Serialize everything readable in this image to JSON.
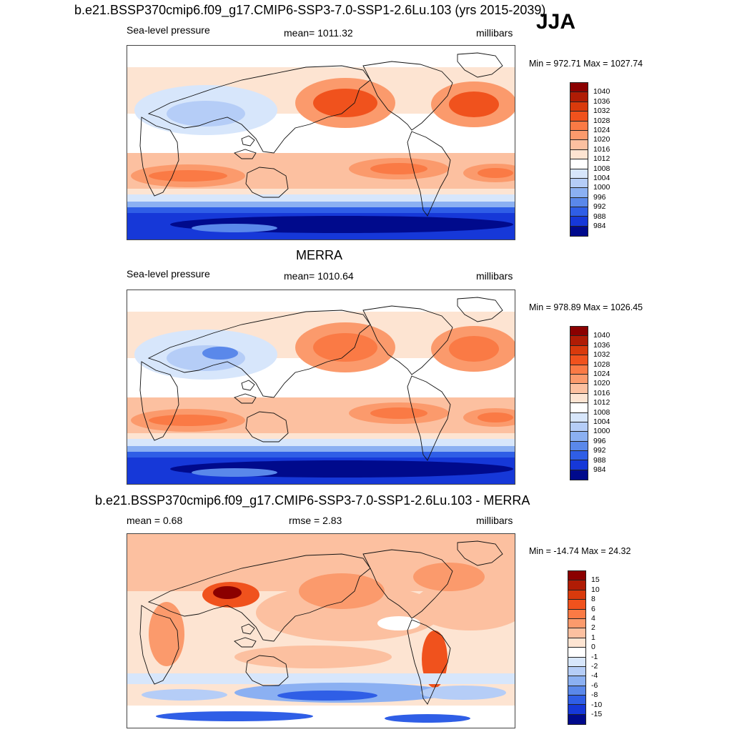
{
  "header": {
    "title": "b.e21.BSSP370cmip6.f09_g17.CMIP6-SSP3-7.0-SSP1-2.6Lu.103 (yrs 2015-2039)",
    "season": "JJA"
  },
  "panels": [
    {
      "id": "model",
      "title": "",
      "left_label": "Sea-level pressure",
      "center_label": "mean= 1011.32",
      "right_label": "millibars",
      "minmax": "Min = 972.71 Max = 1027.74",
      "field": "model"
    },
    {
      "id": "obs",
      "title": "MERRA",
      "left_label": "Sea-level pressure",
      "center_label": "mean= 1010.64",
      "right_label": "millibars",
      "minmax": "Min = 978.89 Max = 1026.45",
      "field": "obs"
    },
    {
      "id": "diff",
      "title": "b.e21.BSSP370cmip6.f09_g17.CMIP6-SSP3-7.0-SSP1-2.6Lu.103 - MERRA",
      "left_label": "mean =   0.68",
      "center_label": "rmse =   2.83",
      "right_label": "millibars",
      "minmax": "Min = -14.74 Max =  24.32",
      "field": "diff"
    }
  ],
  "colorbars": {
    "slp": {
      "levels": [
        "1040",
        "1036",
        "1032",
        "1028",
        "1024",
        "1020",
        "1016",
        "1012",
        "1008",
        "1004",
        "1000",
        "996",
        "992",
        "988",
        "984"
      ],
      "colors": [
        "#8b0000",
        "#b01c05",
        "#d93a0c",
        "#f0521d",
        "#fa7a45",
        "#fb9a6c",
        "#fcc0a0",
        "#fde4d2",
        "#ffffff",
        "#d7e6fb",
        "#b5cdf7",
        "#8bb0f2",
        "#5a88ea",
        "#2f5ee6",
        "#1638d8",
        "#000a8c"
      ]
    },
    "diff": {
      "levels": [
        "15",
        "10",
        "8",
        "6",
        "4",
        "2",
        "1",
        "0",
        "-1",
        "-2",
        "-4",
        "-6",
        "-8",
        "-10",
        "-15"
      ],
      "colors": [
        "#8b0000",
        "#b01c05",
        "#d93a0c",
        "#f0521d",
        "#fa7a45",
        "#fb9a6c",
        "#fcc0a0",
        "#fde4d2",
        "#ffffff",
        "#d7e6fb",
        "#b5cdf7",
        "#8bb0f2",
        "#5a88ea",
        "#2f5ee6",
        "#1638d8",
        "#000a8c"
      ]
    }
  }
}
